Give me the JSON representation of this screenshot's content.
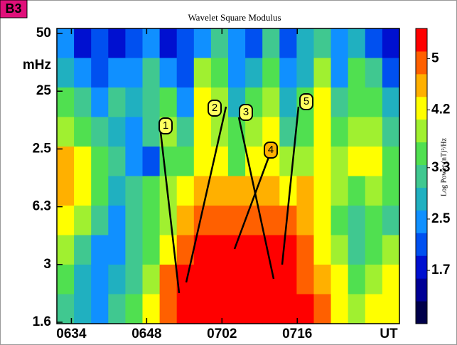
{
  "chart_data": {
    "type": "heatmap",
    "panel_label": "B3",
    "title": "Wavelet Square Modulus",
    "x_label": "UT",
    "y_label": "mHz",
    "xlim": [
      391.3,
      455
    ],
    "xticks": [
      {
        "value": 394,
        "label": "0634"
      },
      {
        "value": 408,
        "label": "0648"
      },
      {
        "value": 422,
        "label": "0702"
      },
      {
        "value": 436,
        "label": "0716"
      }
    ],
    "y_labels": [
      "50",
      "25",
      "2.5",
      "6.3",
      "3",
      "1.6"
    ],
    "z": [
      [
        2.4,
        1.8,
        2.0,
        1.9,
        2.2,
        2.5,
        1.8,
        2.0,
        2.6,
        3.2,
        2.4,
        2.0,
        3.0,
        2.2,
        2.7,
        3.1,
        2.4,
        2.9,
        2.2,
        1.6
      ],
      [
        2.8,
        2.3,
        2.1,
        2.6,
        2.4,
        3.0,
        2.5,
        2.2,
        3.8,
        3.5,
        2.6,
        2.8,
        3.6,
        2.4,
        2.9,
        3.8,
        2.6,
        3.4,
        3.0,
        2.2
      ],
      [
        3.4,
        3.0,
        2.6,
        3.2,
        2.8,
        3.3,
        3.6,
        2.4,
        4.1,
        3.8,
        2.9,
        3.4,
        4.0,
        2.8,
        3.5,
        4.2,
        3.0,
        3.7,
        3.5,
        2.8
      ],
      [
        4.0,
        3.6,
        3.0,
        2.9,
        2.6,
        3.0,
        3.9,
        3.2,
        4.2,
        4.0,
        3.4,
        3.8,
        4.1,
        3.2,
        3.7,
        4.3,
        3.6,
        4.0,
        3.8,
        3.2
      ],
      [
        4.7,
        4.1,
        3.4,
        3.0,
        2.4,
        2.2,
        3.4,
        3.6,
        4.3,
        4.2,
        3.7,
        4.4,
        4.2,
        3.8,
        4.0,
        4.4,
        4.0,
        4.2,
        4.1,
        3.4
      ],
      [
        4.5,
        4.2,
        3.6,
        2.8,
        3.2,
        3.5,
        3.8,
        4.2,
        4.5,
        4.6,
        4.5,
        4.7,
        4.6,
        4.4,
        4.5,
        4.3,
        3.8,
        3.5,
        3.9,
        3.6
      ],
      [
        4.1,
        3.8,
        3.1,
        2.6,
        3.0,
        3.4,
        4.0,
        4.5,
        4.8,
        4.9,
        5.0,
        5.0,
        4.9,
        4.8,
        4.7,
        4.4,
        3.4,
        3.0,
        3.6,
        3.3
      ],
      [
        3.8,
        3.3,
        2.6,
        2.4,
        3.0,
        3.6,
        4.4,
        4.8,
        5.2,
        5.3,
        5.3,
        5.3,
        5.3,
        5.2,
        5.0,
        4.4,
        3.9,
        3.2,
        3.4,
        3.8
      ],
      [
        3.5,
        2.8,
        2.5,
        2.8,
        3.3,
        4.0,
        4.8,
        5.3,
        5.4,
        5.3,
        5.2,
        5.4,
        5.4,
        5.3,
        5.1,
        4.6,
        4.1,
        3.6,
        3.8,
        4.1
      ],
      [
        3.2,
        2.9,
        2.6,
        3.1,
        3.7,
        4.4,
        5.0,
        5.4,
        5.4,
        5.4,
        5.4,
        5.4,
        5.4,
        5.4,
        5.2,
        4.8,
        4.4,
        3.9,
        4.1,
        4.3
      ]
    ],
    "colorbar": {
      "label": "Log Power (nT)²/Hz",
      "lim": [
        0.87,
        5.47
      ],
      "ticks": [
        5,
        4.2,
        3.3,
        2.5,
        1.7
      ],
      "colors": [
        "#00004a",
        "#000096",
        "#0010d0",
        "#0050f0",
        "#1090ff",
        "#20b0c0",
        "#40c890",
        "#50e050",
        "#a0f030",
        "#ffff00",
        "#ffb000",
        "#ff6000",
        "#ff0000"
      ]
    },
    "annotations": [
      "1",
      "2",
      "3",
      "4",
      "5"
    ]
  }
}
